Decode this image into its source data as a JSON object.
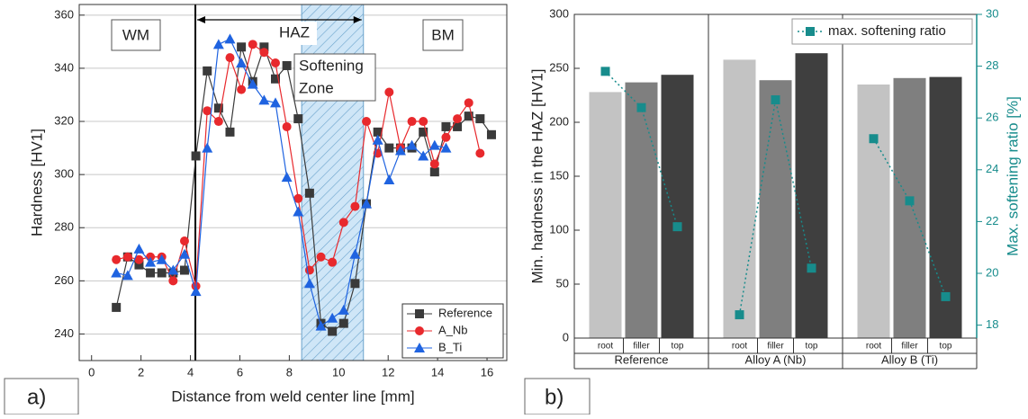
{
  "chart_data": [
    {
      "type": "line",
      "xlabel": "Distance from weld center line [mm]",
      "ylabel": "Hardness [HV1]",
      "panel_label": "a)",
      "annotations": {
        "wm": "WM",
        "haz": "HAZ",
        "bm": "BM",
        "softening": "Softening",
        "zone": "Zone"
      },
      "haz_range": [
        4.2,
        11
      ],
      "softening_zone": [
        8.5,
        11
      ],
      "x": [
        1.0,
        1.46,
        1.92,
        2.38,
        2.84,
        3.3,
        3.76,
        4.22,
        4.68,
        5.14,
        5.6,
        6.06,
        6.52,
        6.98,
        7.44,
        7.9,
        8.36,
        8.82,
        9.28,
        9.74,
        10.2,
        10.66,
        11.12,
        11.58,
        12.04,
        12.5,
        12.96,
        13.42,
        13.88,
        14.34,
        14.8,
        15.26,
        15.72,
        16.18
      ],
      "series": [
        {
          "name": "Reference",
          "color": "#3a3a3a",
          "marker": "square",
          "values": [
            250,
            269,
            266,
            263,
            263,
            263,
            264,
            307,
            339,
            325,
            316,
            348,
            335,
            348,
            336,
            341,
            321,
            293,
            244,
            241,
            244,
            259,
            289,
            316,
            310,
            310,
            310,
            316,
            301,
            318,
            318,
            322,
            321,
            315
          ]
        },
        {
          "name": "A_Nb",
          "color": "#e8292d",
          "marker": "circle",
          "values": [
            268,
            269,
            268,
            269,
            269,
            260,
            275,
            258,
            324,
            320,
            344,
            332,
            349,
            346,
            342,
            318,
            291,
            264,
            269,
            267,
            282,
            288,
            320,
            308,
            331,
            310,
            320,
            320,
            304,
            314,
            321,
            327,
            308,
            null
          ]
        },
        {
          "name": "B_Ti",
          "color": "#1f63e0",
          "marker": "triangle",
          "values": [
            263,
            262,
            272,
            267,
            268,
            264,
            270,
            256,
            310,
            349,
            351,
            342,
            334,
            328,
            327,
            299,
            286,
            259,
            243,
            246,
            249,
            270,
            289,
            313,
            298,
            309,
            311,
            307,
            311,
            310,
            null,
            null,
            null,
            null
          ]
        }
      ],
      "xlim": [
        -0.5,
        16.8
      ],
      "ylim": [
        230,
        364
      ],
      "xticks": [
        0,
        2,
        4,
        6,
        8,
        10,
        12,
        14,
        16
      ],
      "yticks": [
        240,
        260,
        280,
        300,
        320,
        340,
        360
      ],
      "grid": true,
      "legend": "lower right"
    },
    {
      "type": "bar",
      "ylabel": "Min. hardness in the HAZ [HV1]",
      "y2label": "Max. softening ratio [%]",
      "panel_label": "b)",
      "groups": [
        "Reference",
        "Alloy A (Nb)",
        "Alloy B (Ti)"
      ],
      "categories": [
        "root",
        "filler",
        "top"
      ],
      "bars": {
        "colors": [
          "#c3c3c3",
          "#7f7f7f",
          "#3f3f3f"
        ],
        "values": [
          [
            228,
            237,
            244
          ],
          [
            258,
            239,
            264
          ],
          [
            235,
            241,
            242
          ]
        ]
      },
      "line": {
        "name": "max. softening ratio",
        "color": "#178c8c",
        "axis": "y2",
        "values": [
          [
            27.8,
            26.4,
            21.8
          ],
          [
            18.4,
            26.7,
            20.2
          ],
          [
            25.2,
            22.8,
            19.1
          ]
        ]
      },
      "ylim": [
        0,
        300
      ],
      "yticks": [
        0,
        50,
        100,
        150,
        200,
        250,
        300
      ],
      "y2lim": [
        17.5,
        30
      ],
      "y2ticks": [
        18,
        20,
        22,
        24,
        26,
        28,
        30
      ],
      "legend": "upper right"
    }
  ]
}
